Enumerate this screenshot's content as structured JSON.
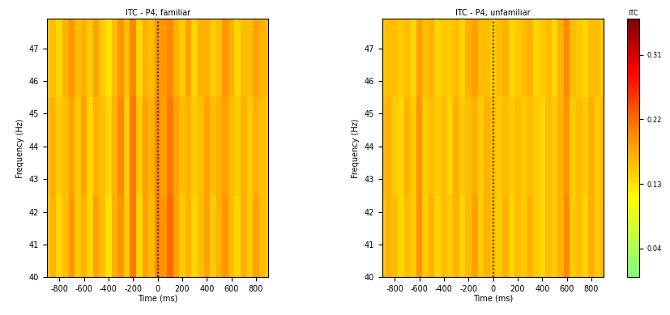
{
  "chart_data": [
    {
      "type": "heatmap",
      "title": "ITC - P4, familiar",
      "x_label": "Time (ms)",
      "y_label": "Frequency (Hz)",
      "xlim": [
        -900,
        900
      ],
      "ylim": [
        40,
        47.9
      ],
      "xticks": [
        -800,
        -600,
        -400,
        -200,
        0,
        200,
        400,
        600,
        800
      ],
      "yticks": [
        40,
        41,
        42,
        43,
        44,
        45,
        46,
        47
      ],
      "vline_x": 0,
      "x": [
        -900,
        -850,
        -800,
        -750,
        -700,
        -650,
        -600,
        -550,
        -500,
        -450,
        -400,
        -350,
        -300,
        -250,
        -200,
        -150,
        -100,
        -50,
        0,
        50,
        100,
        150,
        200,
        250,
        300,
        350,
        400,
        450,
        500,
        550,
        600,
        650,
        700,
        750,
        800,
        850,
        900
      ],
      "y": [
        41,
        44,
        47
      ],
      "cells": [
        [
          0.15,
          0.17,
          0.14,
          0.16,
          0.19,
          0.15,
          0.17,
          0.14,
          0.18,
          0.16,
          0.13,
          0.17,
          0.19,
          0.15,
          0.21,
          0.14,
          0.18,
          0.16,
          0.2,
          0.19,
          0.22,
          0.18,
          0.15,
          0.17,
          0.14,
          0.16,
          0.18,
          0.15,
          0.17,
          0.19,
          0.16,
          0.14,
          0.17,
          0.15,
          0.18,
          0.16,
          0.15
        ],
        [
          0.16,
          0.17,
          0.15,
          0.16,
          0.18,
          0.15,
          0.18,
          0.14,
          0.17,
          0.16,
          0.14,
          0.17,
          0.2,
          0.15,
          0.21,
          0.15,
          0.18,
          0.17,
          0.2,
          0.18,
          0.21,
          0.18,
          0.16,
          0.17,
          0.15,
          0.16,
          0.18,
          0.16,
          0.17,
          0.18,
          0.16,
          0.15,
          0.17,
          0.15,
          0.17,
          0.16,
          0.15
        ],
        [
          0.15,
          0.16,
          0.14,
          0.17,
          0.19,
          0.16,
          0.17,
          0.15,
          0.18,
          0.15,
          0.13,
          0.16,
          0.19,
          0.16,
          0.2,
          0.14,
          0.17,
          0.16,
          0.19,
          0.19,
          0.2,
          0.17,
          0.15,
          0.18,
          0.14,
          0.17,
          0.17,
          0.15,
          0.16,
          0.19,
          0.17,
          0.14,
          0.16,
          0.16,
          0.18,
          0.17,
          0.16
        ]
      ],
      "color_range": [
        0,
        0.36
      ]
    },
    {
      "type": "heatmap",
      "title": "ITC - P4, unfamiliar",
      "x_label": "Time (ms)",
      "y_label": "Frequency (Hz)",
      "xlim": [
        -900,
        900
      ],
      "ylim": [
        40,
        47.9
      ],
      "xticks": [
        -800,
        -600,
        -400,
        -200,
        0,
        200,
        400,
        600,
        800
      ],
      "yticks": [
        40,
        41,
        42,
        43,
        44,
        45,
        46,
        47
      ],
      "vline_x": 0,
      "x": [
        -900,
        -850,
        -800,
        -750,
        -700,
        -650,
        -600,
        -550,
        -500,
        -450,
        -400,
        -350,
        -300,
        -250,
        -200,
        -150,
        -100,
        -50,
        0,
        50,
        100,
        150,
        200,
        250,
        300,
        350,
        400,
        450,
        500,
        550,
        600,
        650,
        700,
        750,
        800,
        850,
        900
      ],
      "y": [
        41,
        44,
        47
      ],
      "cells": [
        [
          0.15,
          0.17,
          0.16,
          0.14,
          0.16,
          0.15,
          0.19,
          0.15,
          0.17,
          0.14,
          0.16,
          0.15,
          0.17,
          0.14,
          0.16,
          0.18,
          0.15,
          0.17,
          0.16,
          0.15,
          0.17,
          0.14,
          0.16,
          0.15,
          0.17,
          0.15,
          0.14,
          0.16,
          0.15,
          0.17,
          0.2,
          0.15,
          0.16,
          0.14,
          0.17,
          0.15,
          0.16
        ],
        [
          0.16,
          0.17,
          0.15,
          0.14,
          0.17,
          0.15,
          0.19,
          0.15,
          0.16,
          0.15,
          0.16,
          0.14,
          0.17,
          0.15,
          0.16,
          0.17,
          0.15,
          0.17,
          0.16,
          0.15,
          0.16,
          0.15,
          0.16,
          0.15,
          0.16,
          0.15,
          0.14,
          0.16,
          0.15,
          0.17,
          0.19,
          0.15,
          0.16,
          0.15,
          0.17,
          0.15,
          0.16
        ],
        [
          0.15,
          0.16,
          0.16,
          0.15,
          0.16,
          0.14,
          0.18,
          0.16,
          0.17,
          0.14,
          0.15,
          0.15,
          0.16,
          0.14,
          0.17,
          0.18,
          0.16,
          0.16,
          0.15,
          0.16,
          0.17,
          0.14,
          0.15,
          0.16,
          0.17,
          0.14,
          0.15,
          0.16,
          0.14,
          0.17,
          0.2,
          0.16,
          0.15,
          0.14,
          0.16,
          0.16,
          0.15
        ]
      ],
      "color_range": [
        0,
        0.36
      ],
      "color_ticks": [
        0.04,
        0.13,
        0.22,
        0.31
      ],
      "color_label": "ITC"
    }
  ]
}
